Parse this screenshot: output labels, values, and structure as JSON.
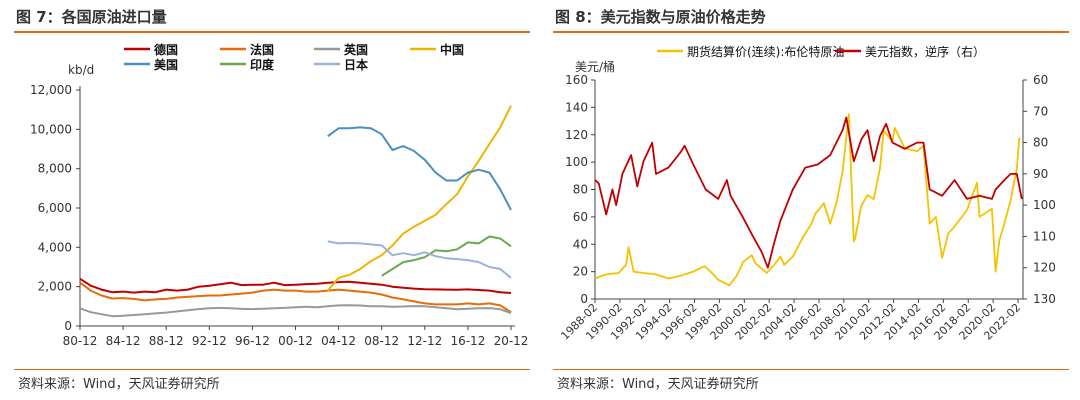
{
  "figures": {
    "left": {
      "title": "图 7：各国原油进口量",
      "source": "资料来源：Wind，天风证券研究所"
    },
    "right": {
      "title": "图 8：美元指数与原油价格走势",
      "source": "资料来源：Wind，天风证券研究所"
    }
  },
  "chart_data": [
    {
      "type": "line",
      "title": "各国原油进口量",
      "ylabel": "kb/d",
      "ylim": [
        0,
        12000
      ],
      "yticks": [
        0,
        2000,
        4000,
        6000,
        8000,
        10000,
        12000
      ],
      "ytick_labels": [
        "0",
        "2,000",
        "4,000",
        "6,000",
        "8,000",
        "10,000",
        "12,000"
      ],
      "xlim": [
        1980,
        2020
      ],
      "xticks": [
        1980,
        1984,
        1988,
        1992,
        1996,
        2000,
        2004,
        2008,
        2012,
        2016,
        2020
      ],
      "xtick_labels": [
        "80-12",
        "84-12",
        "88-12",
        "92-12",
        "96-12",
        "00-12",
        "04-12",
        "08-12",
        "12-12",
        "16-12",
        "20-12"
      ],
      "legend_position": "top",
      "series": [
        {
          "name": "德国",
          "color": "#c00000",
          "x": [
            1980,
            1981,
            1982,
            1983,
            1984,
            1985,
            1986,
            1987,
            1988,
            1989,
            1990,
            1991,
            1992,
            1993,
            1994,
            1995,
            1996,
            1997,
            1998,
            1999,
            2000,
            2001,
            2002,
            2003,
            2004,
            2005,
            2006,
            2007,
            2008,
            2009,
            2010,
            2011,
            2012,
            2013,
            2014,
            2015,
            2016,
            2017,
            2018,
            2019,
            2020
          ],
          "values": [
            2400,
            2050,
            1850,
            1720,
            1750,
            1700,
            1750,
            1720,
            1850,
            1800,
            1850,
            2000,
            2050,
            2120,
            2200,
            2080,
            2100,
            2100,
            2200,
            2080,
            2100,
            2130,
            2150,
            2200,
            2230,
            2250,
            2200,
            2150,
            2100,
            2000,
            1950,
            1900,
            1870,
            1860,
            1850,
            1840,
            1860,
            1830,
            1800,
            1720,
            1680
          ]
        },
        {
          "name": "法国",
          "color": "#e46c0a",
          "x": [
            1980,
            1981,
            1982,
            1983,
            1984,
            1985,
            1986,
            1987,
            1988,
            1989,
            1990,
            1991,
            1992,
            1993,
            1994,
            1995,
            1996,
            1997,
            1998,
            1999,
            2000,
            2001,
            2002,
            2003,
            2004,
            2005,
            2006,
            2007,
            2008,
            2009,
            2010,
            2011,
            2012,
            2013,
            2014,
            2015,
            2016,
            2017,
            2018,
            2019,
            2020
          ],
          "values": [
            2200,
            1800,
            1550,
            1400,
            1420,
            1380,
            1300,
            1350,
            1380,
            1450,
            1480,
            1520,
            1550,
            1550,
            1600,
            1650,
            1700,
            1800,
            1850,
            1800,
            1800,
            1750,
            1750,
            1800,
            1850,
            1800,
            1750,
            1700,
            1600,
            1450,
            1350,
            1250,
            1150,
            1100,
            1100,
            1100,
            1150,
            1100,
            1150,
            1050,
            700
          ]
        },
        {
          "name": "英国",
          "color": "#999999",
          "x": [
            1980,
            1981,
            1982,
            1983,
            1984,
            1985,
            1986,
            1987,
            1988,
            1989,
            1990,
            1991,
            1992,
            1993,
            1994,
            1995,
            1996,
            1997,
            1998,
            1999,
            2000,
            2001,
            2002,
            2003,
            2004,
            2005,
            2006,
            2007,
            2008,
            2009,
            2010,
            2011,
            2012,
            2013,
            2014,
            2015,
            2016,
            2017,
            2018,
            2019,
            2020
          ],
          "values": [
            900,
            700,
            600,
            500,
            520,
            560,
            600,
            640,
            680,
            740,
            800,
            860,
            900,
            920,
            900,
            870,
            860,
            880,
            900,
            920,
            950,
            980,
            950,
            1000,
            1050,
            1060,
            1040,
            1000,
            1000,
            980,
            990,
            1010,
            1000,
            950,
            900,
            850,
            880,
            900,
            910,
            850,
            650
          ]
        },
        {
          "name": "中国",
          "color": "#f0b400",
          "x": [
            2003,
            2004,
            2005,
            2006,
            2007,
            2008,
            2009,
            2010,
            2011,
            2012,
            2013,
            2014,
            2015,
            2016,
            2017,
            2018,
            2019,
            2020
          ],
          "values": [
            1800,
            2450,
            2600,
            2900,
            3300,
            3600,
            4100,
            4700,
            5050,
            5350,
            5650,
            6200,
            6700,
            7600,
            8400,
            9250,
            10100,
            11200
          ]
        },
        {
          "name": "美国",
          "color": "#4a8fc1",
          "x": [
            2003,
            2004,
            2005,
            2006,
            2007,
            2008,
            2009,
            2010,
            2011,
            2012,
            2013,
            2014,
            2015,
            2016,
            2017,
            2018,
            2019,
            2020
          ],
          "values": [
            9650,
            10050,
            10050,
            10100,
            10050,
            9750,
            8950,
            9150,
            8900,
            8450,
            7800,
            7400,
            7400,
            7800,
            7950,
            7800,
            6950,
            5900
          ]
        },
        {
          "name": "印度",
          "color": "#6aa84f",
          "x": [
            2008,
            2009,
            2010,
            2011,
            2012,
            2013,
            2014,
            2015,
            2016,
            2017,
            2018,
            2019,
            2020
          ],
          "values": [
            2550,
            2900,
            3250,
            3350,
            3500,
            3850,
            3800,
            3900,
            4250,
            4200,
            4550,
            4450,
            4050
          ]
        },
        {
          "name": "日本",
          "color": "#9bb1dc",
          "x": [
            2003,
            2004,
            2005,
            2006,
            2007,
            2008,
            2009,
            2010,
            2011,
            2012,
            2013,
            2014,
            2015,
            2016,
            2017,
            2018,
            2019,
            2020
          ],
          "values": [
            4300,
            4200,
            4220,
            4200,
            4150,
            4100,
            3600,
            3700,
            3600,
            3750,
            3550,
            3450,
            3400,
            3350,
            3250,
            3000,
            2900,
            2450
          ]
        }
      ]
    },
    {
      "type": "line",
      "title": "美元指数与原油价格走势",
      "ylabel": "美元/桶",
      "ylim": [
        0,
        160
      ],
      "yticks": [
        0,
        20,
        40,
        60,
        80,
        100,
        120,
        140,
        160
      ],
      "ytick_labels": [
        "0",
        "20",
        "40",
        "60",
        "80",
        "100",
        "120",
        "140",
        "160"
      ],
      "y2lim": [
        60,
        130
      ],
      "y2_inverted": true,
      "y2ticks": [
        60,
        70,
        80,
        90,
        100,
        110,
        120,
        130
      ],
      "y2tick_labels": [
        "60",
        "70",
        "80",
        "90",
        "100",
        "110",
        "120",
        "130"
      ],
      "xlim": [
        1988.1,
        2022.5
      ],
      "xticks": [
        1988.1,
        1990.1,
        1992.1,
        1994.1,
        1996.1,
        1998.1,
        2000.1,
        2002.1,
        2004.1,
        2006.1,
        2008.1,
        2010.1,
        2012.1,
        2014.1,
        2016.1,
        2018.1,
        2020.1,
        2022.1
      ],
      "xtick_labels": [
        "1988-02",
        "1990-02",
        "1992-02",
        "1994-02",
        "1996-02",
        "1998-02",
        "2000-02",
        "2002-02",
        "2004-02",
        "2006-02",
        "2008-02",
        "2010-02",
        "2012-02",
        "2014-02",
        "2016-02",
        "2018-02",
        "2020-02",
        "2022-02"
      ],
      "legend_position": "top",
      "series": [
        {
          "name": "期货结算价(连续):布伦特原油",
          "axis": "left",
          "color": "#f5c200",
          "x": [
            1988.1,
            1989.0,
            1990.0,
            1990.6,
            1990.8,
            1991.2,
            1992.0,
            1993.0,
            1994.0,
            1995.0,
            1996.0,
            1996.9,
            1997.5,
            1998.0,
            1998.9,
            1999.5,
            2000.0,
            2000.7,
            2001.0,
            2001.9,
            2002.5,
            2003.0,
            2003.3,
            2004.0,
            2004.8,
            2005.5,
            2005.8,
            2006.5,
            2007.0,
            2007.5,
            2008.0,
            2008.5,
            2008.9,
            2009.0,
            2009.5,
            2010.0,
            2010.5,
            2011.0,
            2011.3,
            2012.0,
            2012.2,
            2013.0,
            2014.0,
            2014.5,
            2015.0,
            2015.5,
            2016.0,
            2016.5,
            2017.0,
            2018.0,
            2018.8,
            2019.0,
            2020.0,
            2020.3,
            2020.6,
            2021.0,
            2021.5,
            2022.0,
            2022.2
          ],
          "values": [
            15,
            18,
            19,
            25,
            38,
            20,
            19,
            18,
            15,
            17,
            20,
            24,
            19,
            14,
            10,
            17,
            27,
            32,
            26,
            19,
            25,
            31,
            25,
            31,
            45,
            55,
            62,
            70,
            55,
            70,
            93,
            135,
            42,
            44,
            68,
            76,
            73,
            95,
            123,
            115,
            125,
            110,
            108,
            112,
            55,
            60,
            30,
            48,
            53,
            65,
            85,
            60,
            66,
            20,
            43,
            55,
            72,
            95,
            118
          ]
        },
        {
          "name": "美元指数，逆序（右）",
          "axis": "right",
          "color": "#c00000",
          "x": [
            1988.1,
            1988.4,
            1989.0,
            1989.5,
            1989.8,
            1990.3,
            1991.0,
            1991.5,
            1992.0,
            1992.7,
            1993.0,
            1994.0,
            1995.0,
            1995.3,
            1996.0,
            1997.0,
            1998.0,
            1998.7,
            1999.0,
            2000.0,
            2000.8,
            2001.5,
            2002.0,
            2002.5,
            2003.0,
            2003.5,
            2004.0,
            2005.0,
            2006.0,
            2007.0,
            2008.0,
            2008.3,
            2008.9,
            2009.5,
            2010.0,
            2010.5,
            2011.0,
            2011.5,
            2012.0,
            2013.0,
            2014.0,
            2014.5,
            2015.0,
            2015.5,
            2016.0,
            2017.0,
            2017.5,
            2018.0,
            2019.0,
            2020.0,
            2020.3,
            2021.0,
            2021.5,
            2022.0,
            2022.4
          ],
          "values": [
            92,
            93,
            103,
            95,
            100,
            90,
            84,
            94,
            86,
            80,
            90,
            88,
            83,
            81,
            87,
            95,
            98,
            92,
            97,
            104,
            110,
            115,
            120,
            112,
            105,
            100,
            95,
            88,
            87,
            84,
            76,
            72,
            86,
            79,
            76,
            86,
            78,
            74,
            80,
            82,
            80,
            80,
            95,
            96,
            97,
            92,
            95,
            98,
            97,
            98,
            95,
            92,
            90,
            90,
            98
          ]
        }
      ]
    }
  ]
}
